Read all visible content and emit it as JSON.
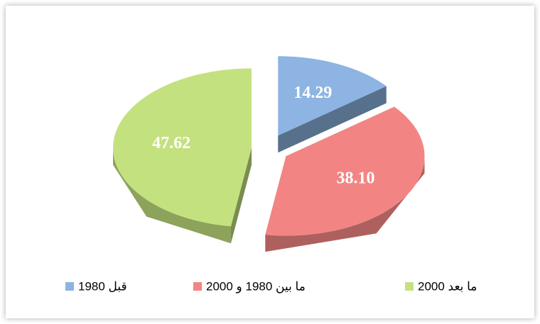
{
  "chart_data": {
    "type": "pie3d",
    "categories": [
      "قبل 1980",
      "ما بين 1980 و 2000",
      "ما بعد 2000"
    ],
    "values": [
      14.29,
      38.1,
      47.62
    ],
    "value_labels": [
      "14.29",
      "38.10",
      "47.62"
    ],
    "colors": [
      "#8db4e2",
      "#f28583",
      "#c4e17f"
    ],
    "legend": "bottom"
  }
}
